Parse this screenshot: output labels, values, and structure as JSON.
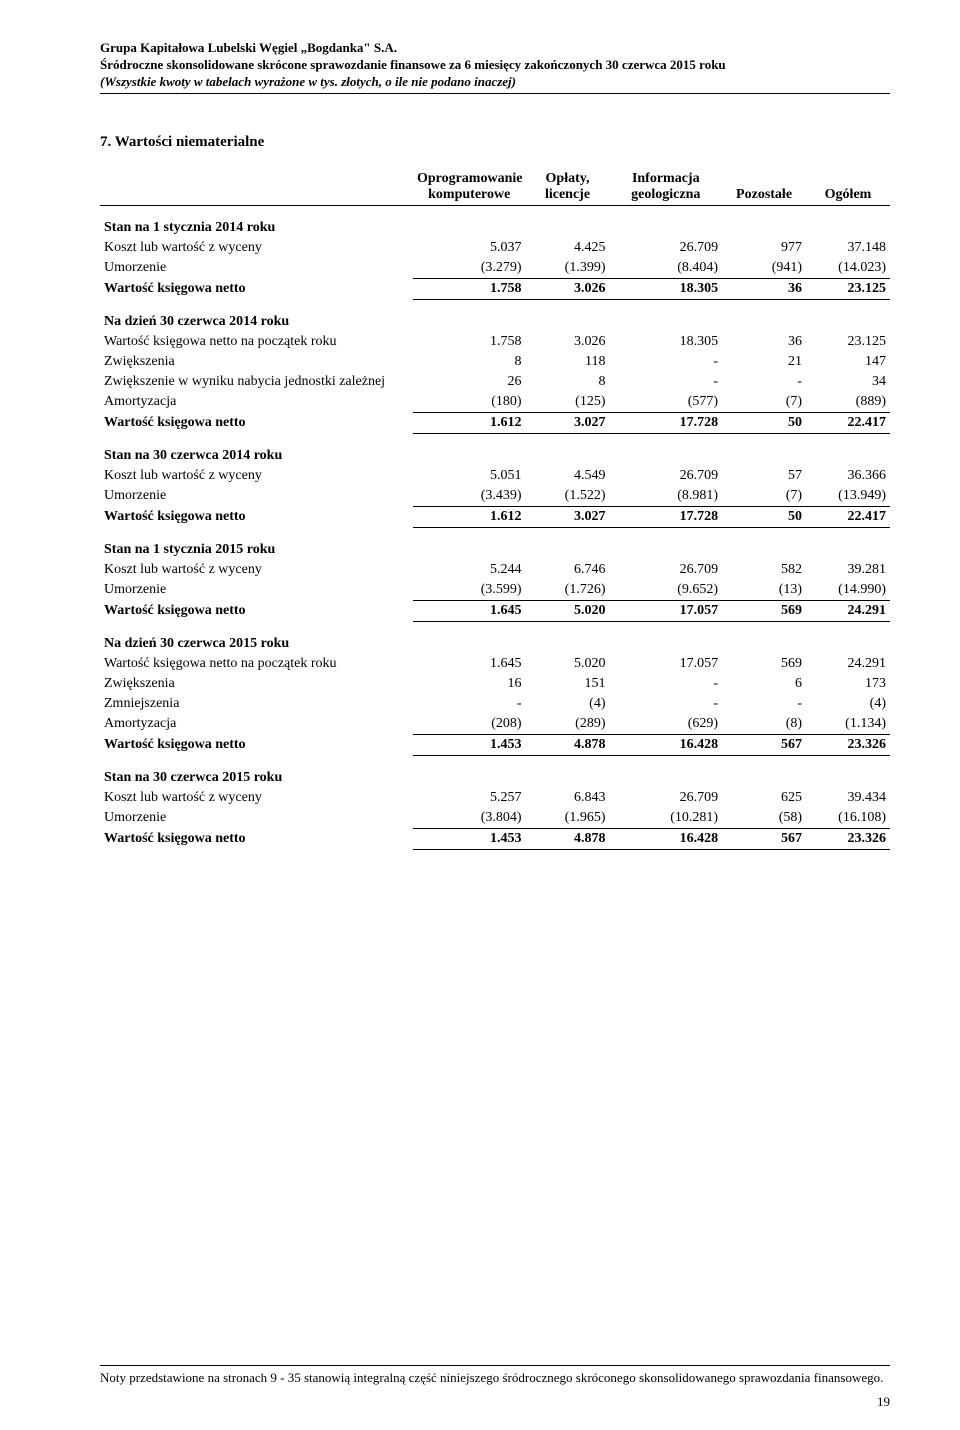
{
  "header": {
    "line1": "Grupa Kapitałowa Lubelski Węgiel „Bogdanka\" S.A.",
    "line2": "Śródroczne skonsolidowane skrócone sprawozdanie finansowe za 6 miesięcy zakończonych 30 czerwca 2015 roku",
    "line3": "(Wszystkie kwoty w tabelach wyrażone w tys. złotych, o ile nie podano inaczej)"
  },
  "section_title": "7.   Wartości niematerialne",
  "columns": {
    "c1": "Oprogramowanie komputerowe",
    "c2": "Opłaty, licencje",
    "c3": "Informacja geologiczna",
    "c4": "Pozostałe",
    "c5": "Ogółem"
  },
  "groups": [
    {
      "title": "Stan na 1 stycznia 2014 roku",
      "rows": [
        {
          "label": "Koszt lub wartość z wyceny",
          "v": [
            "5.037",
            "4.425",
            "26.709",
            "977",
            "37.148"
          ]
        },
        {
          "label": "Umorzenie",
          "v": [
            "(3.279)",
            "(1.399)",
            "(8.404)",
            "(941)",
            "(14.023)"
          ]
        }
      ],
      "sum": {
        "label": "Wartość księgowa netto",
        "v": [
          "1.758",
          "3.026",
          "18.305",
          "36",
          "23.125"
        ]
      }
    },
    {
      "title": "Na dzień 30 czerwca 2014 roku",
      "rows": [
        {
          "label": "Wartość księgowa netto na początek roku",
          "v": [
            "1.758",
            "3.026",
            "18.305",
            "36",
            "23.125"
          ]
        },
        {
          "label": "Zwiększenia",
          "v": [
            "8",
            "118",
            "-",
            "21",
            "147"
          ]
        },
        {
          "label": "Zwiększenie w wyniku nabycia jednostki zależnej",
          "v": [
            "26",
            "8",
            "-",
            "-",
            "34"
          ]
        },
        {
          "label": "Amortyzacja",
          "v": [
            "(180)",
            "(125)",
            "(577)",
            "(7)",
            "(889)"
          ]
        }
      ],
      "sum": {
        "label": "Wartość księgowa netto",
        "v": [
          "1.612",
          "3.027",
          "17.728",
          "50",
          "22.417"
        ]
      }
    },
    {
      "title": "Stan na 30 czerwca 2014 roku",
      "rows": [
        {
          "label": "Koszt lub wartość z wyceny",
          "v": [
            "5.051",
            "4.549",
            "26.709",
            "57",
            "36.366"
          ]
        },
        {
          "label": "Umorzenie",
          "v": [
            "(3.439)",
            "(1.522)",
            "(8.981)",
            "(7)",
            "(13.949)"
          ]
        }
      ],
      "sum": {
        "label": "Wartość księgowa netto",
        "v": [
          "1.612",
          "3.027",
          "17.728",
          "50",
          "22.417"
        ]
      }
    },
    {
      "title": "Stan na 1 stycznia 2015 roku",
      "rows": [
        {
          "label": "Koszt lub wartość z wyceny",
          "v": [
            "5.244",
            "6.746",
            "26.709",
            "582",
            "39.281"
          ]
        },
        {
          "label": "Umorzenie",
          "v": [
            "(3.599)",
            "(1.726)",
            "(9.652)",
            "(13)",
            "(14.990)"
          ]
        }
      ],
      "sum": {
        "label": "Wartość księgowa netto",
        "v": [
          "1.645",
          "5.020",
          "17.057",
          "569",
          "24.291"
        ]
      }
    },
    {
      "title": "Na dzień 30 czerwca 2015 roku",
      "rows": [
        {
          "label": "Wartość księgowa netto na początek roku",
          "v": [
            "1.645",
            "5.020",
            "17.057",
            "569",
            "24.291"
          ]
        },
        {
          "label": "Zwiększenia",
          "v": [
            "16",
            "151",
            "-",
            "6",
            "173"
          ]
        },
        {
          "label": "Zmniejszenia",
          "v": [
            "-",
            "(4)",
            "-",
            "-",
            "(4)"
          ]
        },
        {
          "label": "Amortyzacja",
          "v": [
            "(208)",
            "(289)",
            "(629)",
            "(8)",
            "(1.134)"
          ]
        }
      ],
      "sum": {
        "label": "Wartość księgowa netto",
        "v": [
          "1.453",
          "4.878",
          "16.428",
          "567",
          "23.326"
        ]
      }
    },
    {
      "title": "Stan na 30 czerwca 2015 roku",
      "rows": [
        {
          "label": "Koszt lub wartość z wyceny",
          "v": [
            "5.257",
            "6.843",
            "26.709",
            "625",
            "39.434"
          ]
        },
        {
          "label": "Umorzenie",
          "v": [
            "(3.804)",
            "(1.965)",
            "(10.281)",
            "(58)",
            "(16.108)"
          ]
        }
      ],
      "sum": {
        "label": "Wartość księgowa netto",
        "v": [
          "1.453",
          "4.878",
          "16.428",
          "567",
          "23.326"
        ]
      }
    }
  ],
  "footer": "Noty przedstawione na stronach 9 - 35 stanowią integralną część niniejszego śródrocznego skróconego skonsolidowanego sprawozdania finansowego.",
  "page_number": "19"
}
